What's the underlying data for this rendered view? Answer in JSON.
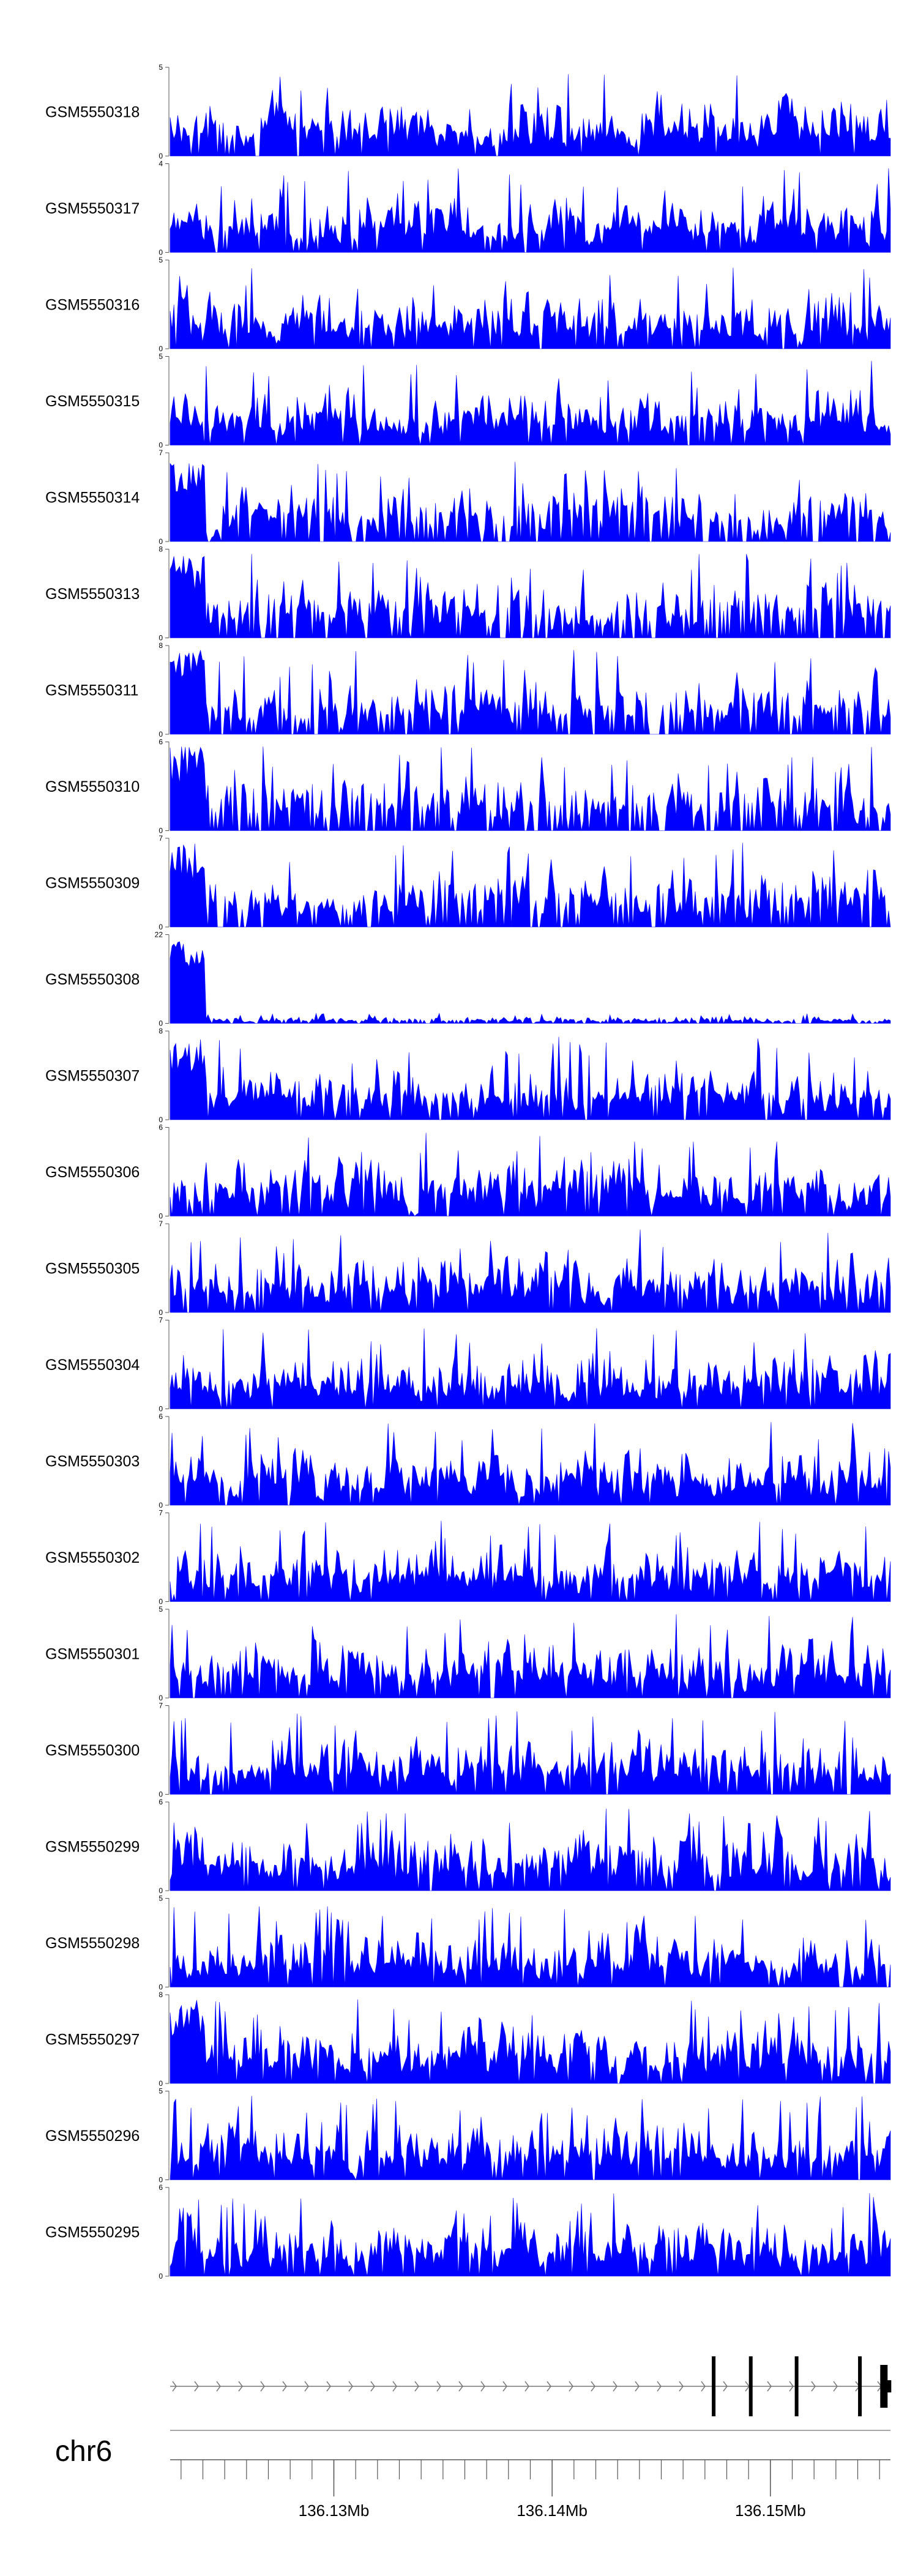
{
  "chart_data": {
    "type": "area",
    "title": "",
    "xlabel": "",
    "ylabel": "",
    "grid": false,
    "legend": "none",
    "color": "#0000ff",
    "chromosome": "chr6",
    "x_range": [
      136.1225,
      136.1555
    ],
    "x_unit": "Mb",
    "x_ticks": [
      {
        "value": 136.13,
        "label": "136.13Mb"
      },
      {
        "value": 136.14,
        "label": "136.14Mb"
      },
      {
        "value": 136.15,
        "label": "136.15Mb"
      }
    ],
    "tracks": [
      {
        "name": "GSM5550318",
        "ymax": 5
      },
      {
        "name": "GSM5550317",
        "ymax": 4
      },
      {
        "name": "GSM5550316",
        "ymax": 5
      },
      {
        "name": "GSM5550315",
        "ymax": 5
      },
      {
        "name": "GSM5550314",
        "ymax": 7
      },
      {
        "name": "GSM5550313",
        "ymax": 8
      },
      {
        "name": "GSM5550311",
        "ymax": 8
      },
      {
        "name": "GSM5550310",
        "ymax": 6
      },
      {
        "name": "GSM5550309",
        "ymax": 7
      },
      {
        "name": "GSM5550308",
        "ymax": 22
      },
      {
        "name": "GSM5550307",
        "ymax": 8
      },
      {
        "name": "GSM5550306",
        "ymax": 6
      },
      {
        "name": "GSM5550305",
        "ymax": 7
      },
      {
        "name": "GSM5550304",
        "ymax": 7
      },
      {
        "name": "GSM5550303",
        "ymax": 6
      },
      {
        "name": "GSM5550302",
        "ymax": 7
      },
      {
        "name": "GSM5550301",
        "ymax": 5
      },
      {
        "name": "GSM5550300",
        "ymax": 7
      },
      {
        "name": "GSM5550299",
        "ymax": 6
      },
      {
        "name": "GSM5550298",
        "ymax": 5
      },
      {
        "name": "GSM5550297",
        "ymax": 8
      },
      {
        "name": "GSM5550296",
        "ymax": 5
      },
      {
        "name": "GSM5550295",
        "ymax": 6
      }
    ],
    "gene_exons_mb": [
      136.1474,
      136.1491,
      136.1512,
      136.1541,
      136.1552
    ]
  }
}
